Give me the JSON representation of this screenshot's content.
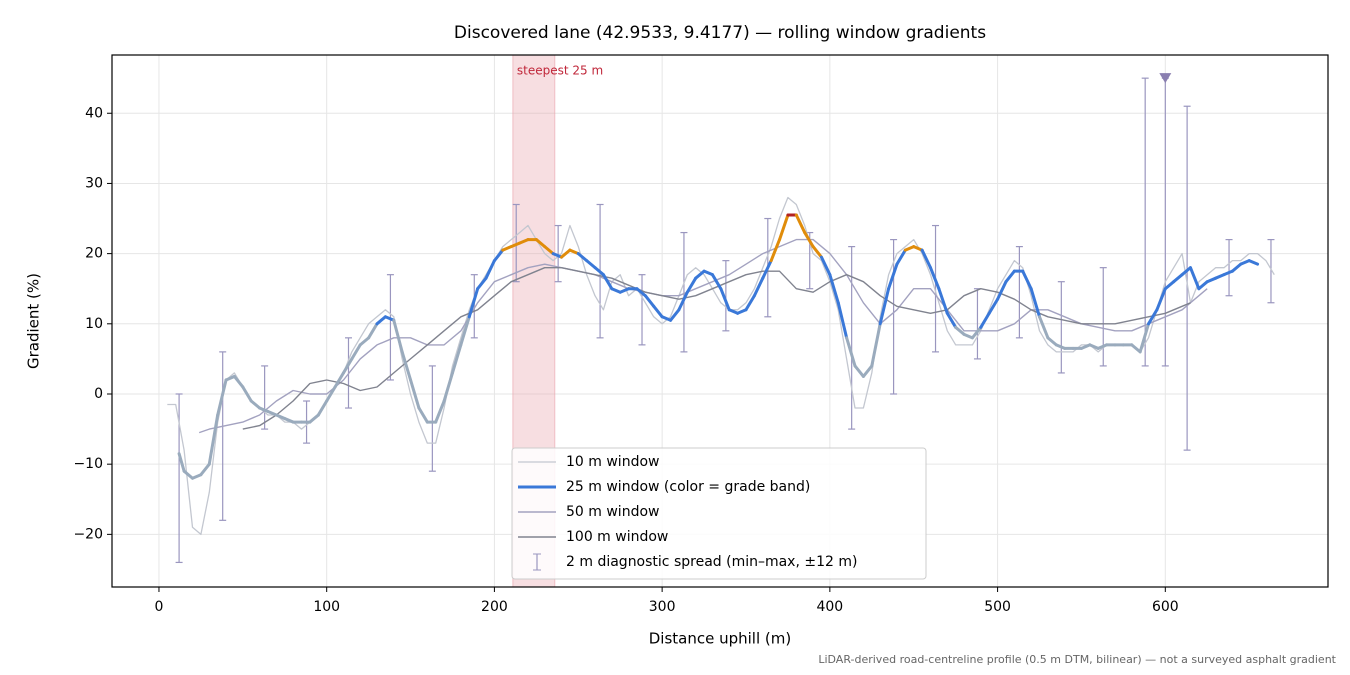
{
  "chart_data": {
    "type": "line",
    "title": "Discovered lane (42.9533, 9.4177) — rolling window gradients",
    "x_label": "Distance uphill (m)",
    "y_label": "Gradient (%)",
    "footnote": "LiDAR-derived road-centreline profile (0.5 m DTM, bilinear) — not a surveyed asphalt gradient",
    "xlim": [
      -28,
      697
    ],
    "ylim": [
      -27.5,
      48.3
    ],
    "xticks": [
      0,
      100,
      200,
      300,
      400,
      500,
      600
    ],
    "yticks": [
      {
        "value": -20,
        "label": "−20"
      },
      {
        "value": -10,
        "label": "−10"
      },
      0,
      10,
      20,
      30,
      40
    ],
    "grid": true,
    "legend": "lower center",
    "highlight": {
      "label": "steepest 25 m",
      "from": 211,
      "to": 236,
      "color": "#e8a0a8"
    },
    "series": [
      {
        "name": "10 m window",
        "color": "#c3c7d0",
        "width": 1.3,
        "x": [
          5,
          10,
          15,
          20,
          25,
          30,
          35,
          40,
          45,
          50,
          55,
          60,
          65,
          70,
          75,
          80,
          85,
          90,
          95,
          100,
          105,
          110,
          115,
          120,
          125,
          130,
          135,
          140,
          145,
          150,
          155,
          160,
          165,
          170,
          175,
          180,
          185,
          190,
          195,
          200,
          205,
          210,
          215,
          220,
          225,
          230,
          235,
          240,
          245,
          250,
          255,
          260,
          265,
          270,
          275,
          280,
          285,
          290,
          295,
          300,
          305,
          310,
          315,
          320,
          325,
          330,
          335,
          340,
          345,
          350,
          355,
          360,
          365,
          370,
          375,
          380,
          385,
          390,
          395,
          400,
          405,
          410,
          415,
          420,
          425,
          430,
          435,
          440,
          445,
          450,
          455,
          460,
          465,
          470,
          475,
          480,
          485,
          490,
          495,
          500,
          505,
          510,
          515,
          520,
          525,
          530,
          535,
          540,
          545,
          550,
          555,
          560,
          565,
          570,
          575,
          580,
          585,
          590,
          595,
          600,
          605,
          610,
          615,
          620,
          625,
          630,
          635,
          640,
          645,
          650,
          655,
          660,
          665
        ],
        "values": [
          -1.5,
          -1.5,
          -8,
          -19,
          -20,
          -14,
          -4,
          2,
          3,
          1,
          -1,
          -2,
          -3,
          -3,
          -4,
          -4,
          -5,
          -4,
          -3,
          -1,
          1,
          3,
          6,
          8,
          10,
          11,
          12,
          11,
          5,
          0,
          -4,
          -7,
          -7,
          -2,
          4,
          8,
          12,
          15,
          17,
          19,
          21,
          22,
          23,
          24,
          22,
          20,
          19,
          20,
          24,
          21,
          17,
          14,
          12,
          16,
          17,
          14,
          15,
          13,
          11,
          10,
          11,
          14,
          17,
          18,
          17,
          15,
          13,
          12,
          12,
          13,
          15,
          18,
          21,
          25,
          28,
          27,
          24,
          20,
          19,
          16,
          12,
          5,
          -2,
          -2,
          3,
          11,
          17,
          20,
          21,
          22,
          20,
          17,
          13,
          9,
          7,
          7,
          7,
          9,
          12,
          15,
          17,
          19,
          18,
          14,
          9,
          7,
          6,
          6,
          6,
          7,
          7,
          6,
          7,
          7,
          7,
          7,
          6,
          8,
          12,
          16,
          18,
          20,
          13,
          16,
          17,
          18,
          18,
          19,
          19,
          20,
          20,
          19,
          17
        ]
      },
      {
        "name": "25 m window (color = grade band)",
        "color": "#3a78d8",
        "width": 3,
        "grade_bands": [
          {
            "from": -100,
            "color": "#9aabbd"
          },
          {
            "from": 10,
            "color": "#3a78d8"
          },
          {
            "from": 20,
            "color": "#e08c0a"
          },
          {
            "from": 25,
            "color": "#b22222"
          }
        ],
        "x": [
          12,
          15,
          20,
          25,
          30,
          35,
          40,
          45,
          50,
          55,
          60,
          65,
          70,
          75,
          80,
          85,
          90,
          95,
          100,
          105,
          110,
          115,
          120,
          125,
          130,
          135,
          140,
          145,
          150,
          155,
          160,
          165,
          170,
          175,
          180,
          185,
          190,
          195,
          200,
          205,
          210,
          215,
          220,
          225,
          230,
          235,
          240,
          245,
          250,
          255,
          260,
          265,
          270,
          275,
          280,
          285,
          290,
          295,
          300,
          305,
          310,
          315,
          320,
          325,
          330,
          335,
          340,
          345,
          350,
          355,
          360,
          365,
          370,
          375,
          380,
          385,
          390,
          395,
          400,
          405,
          410,
          415,
          420,
          425,
          430,
          435,
          440,
          445,
          450,
          455,
          460,
          465,
          470,
          475,
          480,
          485,
          490,
          495,
          500,
          505,
          510,
          515,
          520,
          525,
          530,
          535,
          540,
          545,
          550,
          555,
          560,
          565,
          570,
          575,
          580,
          585,
          590,
          595,
          600,
          605,
          610,
          615,
          620,
          625,
          630,
          635,
          640,
          645,
          650,
          655
        ],
        "values": [
          -8.5,
          -11,
          -12,
          -11.5,
          -10,
          -3,
          2,
          2.5,
          1,
          -1,
          -2,
          -2.5,
          -3,
          -3.5,
          -4,
          -4,
          -4,
          -3,
          -1,
          1,
          3,
          5,
          7,
          8,
          10,
          11,
          10.5,
          6,
          2,
          -2,
          -4,
          -4,
          -1,
          3,
          7,
          11,
          15,
          16.5,
          19,
          20.5,
          21,
          21.5,
          22,
          22,
          21,
          20,
          19.5,
          20.5,
          20,
          19,
          18,
          17,
          15,
          14.5,
          15,
          15,
          14,
          12.5,
          11,
          10.5,
          12,
          14.5,
          16.5,
          17.5,
          17,
          15,
          12,
          11.5,
          12,
          14,
          16.5,
          19,
          22,
          25.5,
          25.5,
          23,
          21,
          19.5,
          17,
          13,
          8,
          4,
          2.5,
          4,
          10,
          15,
          18.5,
          20.5,
          21,
          20.5,
          18,
          15,
          11.5,
          9.5,
          8.5,
          8,
          9.5,
          11.5,
          13.5,
          16,
          17.5,
          17.5,
          15,
          11,
          8,
          7,
          6.5,
          6.5,
          6.5,
          7,
          6.5,
          7,
          7,
          7,
          7,
          6,
          10,
          12,
          15,
          16,
          17,
          18,
          15,
          16,
          16.5,
          17,
          17.5,
          18.5,
          19,
          18.5
        ]
      },
      {
        "name": "50 m window",
        "color": "#a3a2c0",
        "width": 1.4,
        "x": [
          24,
          30,
          40,
          50,
          60,
          70,
          80,
          90,
          100,
          110,
          120,
          130,
          140,
          150,
          160,
          170,
          180,
          190,
          200,
          210,
          220,
          230,
          240,
          250,
          260,
          270,
          280,
          290,
          300,
          310,
          320,
          330,
          340,
          350,
          360,
          370,
          380,
          390,
          400,
          410,
          420,
          430,
          440,
          450,
          460,
          470,
          480,
          490,
          500,
          510,
          520,
          530,
          540,
          550,
          560,
          570,
          580,
          590,
          600,
          610,
          620,
          625
        ],
        "values": [
          -5.5,
          -5,
          -4.5,
          -4,
          -3,
          -1,
          0.5,
          0,
          0,
          2,
          5,
          7,
          8,
          8,
          7,
          7,
          9,
          13,
          16,
          17,
          18,
          18.5,
          18,
          17.5,
          17,
          16,
          15,
          14.5,
          14,
          14,
          15,
          16,
          17,
          18.5,
          20,
          21,
          22,
          22,
          20,
          17,
          13,
          10,
          12,
          15,
          15,
          12,
          9,
          9,
          9,
          10,
          12,
          12,
          11,
          10,
          9.5,
          9,
          9,
          10,
          11,
          12,
          14,
          15
        ]
      },
      {
        "name": "100 m window",
        "color": "#80838f",
        "width": 1.4,
        "x": [
          50,
          60,
          70,
          80,
          90,
          100,
          110,
          120,
          130,
          140,
          150,
          160,
          170,
          180,
          190,
          200,
          210,
          220,
          230,
          240,
          250,
          260,
          270,
          280,
          290,
          300,
          310,
          320,
          330,
          340,
          350,
          360,
          370,
          380,
          390,
          400,
          410,
          420,
          430,
          440,
          450,
          460,
          470,
          480,
          490,
          500,
          510,
          520,
          530,
          540,
          550,
          560,
          570,
          580,
          590,
          600,
          610,
          615
        ],
        "values": [
          -5,
          -4.5,
          -3,
          -1,
          1.5,
          2,
          1.5,
          0.5,
          1,
          3,
          5,
          7,
          9,
          11,
          12,
          14,
          16,
          17,
          18,
          18,
          17.5,
          17,
          16.5,
          15.5,
          14.5,
          14,
          13.5,
          14,
          15,
          16,
          17,
          17.5,
          17.5,
          15,
          14.5,
          16,
          17,
          16,
          14,
          12.5,
          12,
          11.5,
          12,
          14,
          15,
          14.5,
          13.5,
          12,
          11,
          10.5,
          10,
          10,
          10,
          10.5,
          11,
          11.5,
          12.5,
          13
        ]
      }
    ],
    "error_bars": {
      "name": "2 m diagnostic spread (min–max, ±12 m)",
      "color": "#9a96bf",
      "x": [
        12,
        38,
        63,
        88,
        113,
        138,
        163,
        188,
        213,
        238,
        263,
        288,
        313,
        338,
        363,
        388,
        413,
        438,
        463,
        488,
        513,
        538,
        563,
        588,
        600,
        613,
        638,
        663
      ],
      "low": [
        -24,
        -18,
        -5,
        -7,
        -2,
        2,
        -11,
        8,
        16,
        16,
        8,
        7,
        6,
        9,
        11,
        15,
        -5,
        0,
        6,
        5,
        8,
        3,
        4,
        4,
        4,
        -8,
        14,
        13
      ],
      "high": [
        0,
        6,
        4,
        -1,
        8,
        17,
        4,
        17,
        27,
        24,
        27,
        17,
        23,
        19,
        25,
        23,
        21,
        22,
        24,
        15,
        21,
        16,
        18,
        45,
        45,
        41,
        22,
        22
      ]
    },
    "marker": {
      "x": 600,
      "y": 45,
      "color": "#8a7fb0"
    }
  }
}
